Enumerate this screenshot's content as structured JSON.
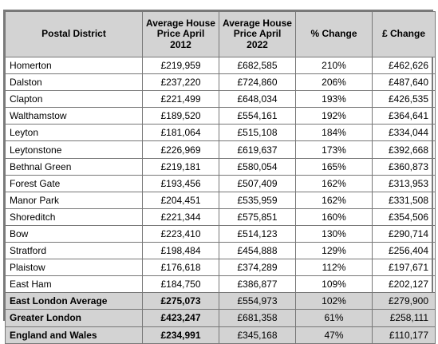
{
  "table": {
    "headers": [
      "Postal District",
      "Average House Price April 2012",
      "Average House Price April 2022",
      "% Change",
      "£ Change"
    ],
    "rows": [
      {
        "district": "Homerton",
        "price_2012": "£219,959",
        "price_2022": "£682,585",
        "pct_change": "210%",
        "gbp_change": "£462,626"
      },
      {
        "district": "Dalston",
        "price_2012": "£237,220",
        "price_2022": "£724,860",
        "pct_change": "206%",
        "gbp_change": "£487,640"
      },
      {
        "district": "Clapton",
        "price_2012": "£221,499",
        "price_2022": "£648,034",
        "pct_change": "193%",
        "gbp_change": "£426,535"
      },
      {
        "district": "Walthamstow",
        "price_2012": "£189,520",
        "price_2022": "£554,161",
        "pct_change": "192%",
        "gbp_change": "£364,641"
      },
      {
        "district": "Leyton",
        "price_2012": "£181,064",
        "price_2022": "£515,108",
        "pct_change": "184%",
        "gbp_change": "£334,044"
      },
      {
        "district": "Leytonstone",
        "price_2012": "£226,969",
        "price_2022": "£619,637",
        "pct_change": "173%",
        "gbp_change": "£392,668"
      },
      {
        "district": "Bethnal Green",
        "price_2012": "£219,181",
        "price_2022": "£580,054",
        "pct_change": "165%",
        "gbp_change": "£360,873"
      },
      {
        "district": "Forest Gate",
        "price_2012": "£193,456",
        "price_2022": "£507,409",
        "pct_change": "162%",
        "gbp_change": "£313,953"
      },
      {
        "district": "Manor Park",
        "price_2012": "£204,451",
        "price_2022": "£535,959",
        "pct_change": "162%",
        "gbp_change": "£331,508"
      },
      {
        "district": "Shoreditch",
        "price_2012": "£221,344",
        "price_2022": "£575,851",
        "pct_change": "160%",
        "gbp_change": "£354,506"
      },
      {
        "district": "Bow",
        "price_2012": "£223,410",
        "price_2022": "£514,123",
        "pct_change": "130%",
        "gbp_change": "£290,714"
      },
      {
        "district": "Stratford",
        "price_2012": "£198,484",
        "price_2022": "£454,888",
        "pct_change": "129%",
        "gbp_change": "£256,404"
      },
      {
        "district": "Plaistow",
        "price_2012": "£176,618",
        "price_2022": "£374,289",
        "pct_change": "112%",
        "gbp_change": "£197,671"
      },
      {
        "district": "East Ham",
        "price_2012": "£184,750",
        "price_2022": "£386,877",
        "pct_change": "109%",
        "gbp_change": "£202,127"
      }
    ],
    "summary_rows": [
      {
        "district": "East London Average",
        "price_2012": "£275,073",
        "price_2022": "£554,973",
        "pct_change": "102%",
        "gbp_change": "£279,900"
      },
      {
        "district": "Greater London",
        "price_2012": "£423,247",
        "price_2022": "£681,358",
        "pct_change": "61%",
        "gbp_change": "£258,111"
      },
      {
        "district": "England and Wales",
        "price_2012": "£234,991",
        "price_2022": "£345,168",
        "pct_change": "47%",
        "gbp_change": "£110,177"
      }
    ]
  },
  "colors": {
    "header_bg": "#d3d3d3",
    "summary_bg": "#d3d3d3",
    "border": "#777777"
  }
}
